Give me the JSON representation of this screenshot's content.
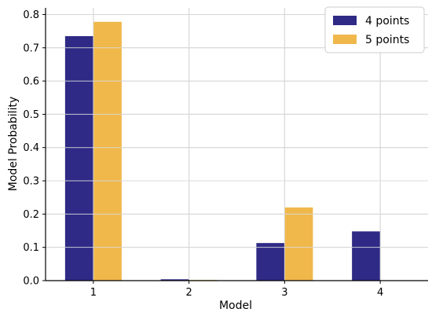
{
  "chart_data": {
    "type": "bar",
    "title": "",
    "xlabel": "Model",
    "ylabel": "Model Probability",
    "categories": [
      "1",
      "2",
      "3",
      "4"
    ],
    "series": [
      {
        "name": "4 points",
        "color": "#2e2a85",
        "values": [
          0.735,
          0.004,
          0.113,
          0.148
        ]
      },
      {
        "name": "5 points",
        "color": "#f0b84a",
        "values": [
          0.778,
          0.002,
          0.22,
          0.0
        ]
      }
    ],
    "ylim": [
      0,
      0.82
    ],
    "yticks": [
      0.0,
      0.1,
      0.2,
      0.3,
      0.4,
      0.5,
      0.6,
      0.7,
      0.8
    ],
    "ytick_labels": [
      "0.0",
      "0.1",
      "0.2",
      "0.3",
      "0.4",
      "0.5",
      "0.6",
      "0.7",
      "0.8"
    ],
    "grid": true,
    "legend_position": "top-right"
  }
}
